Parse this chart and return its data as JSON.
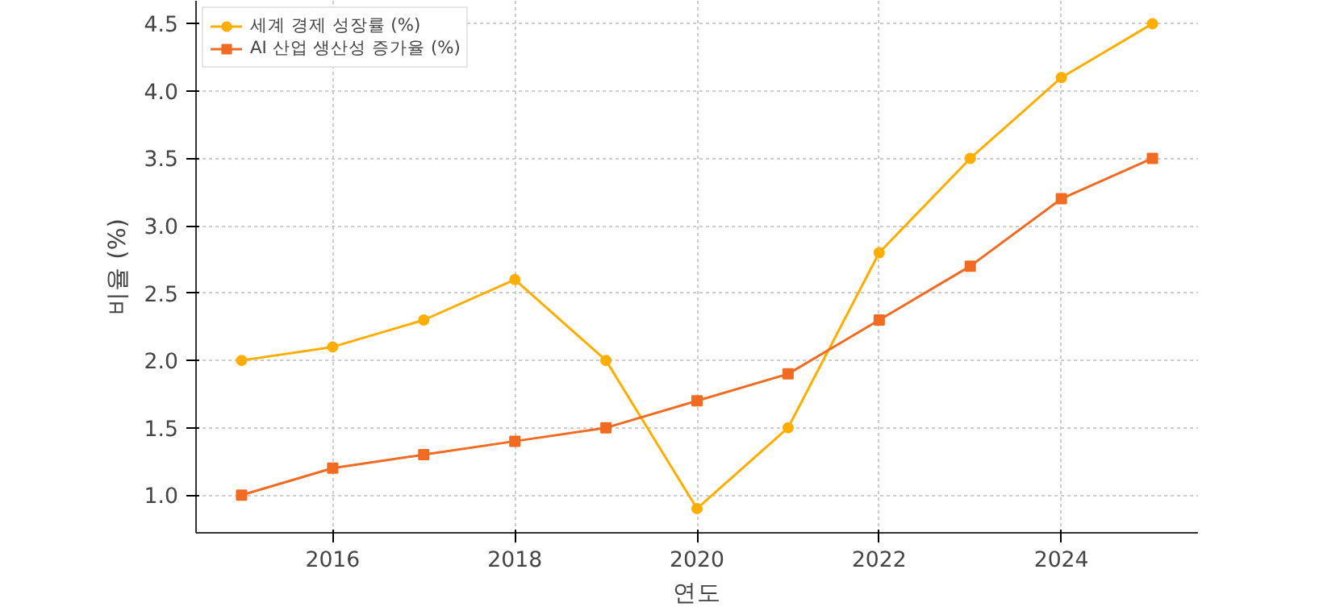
{
  "chart_data": {
    "type": "line",
    "xlabel": "연도",
    "ylabel": "비율 (%)",
    "x": [
      2015,
      2016,
      2017,
      2018,
      2019,
      2020,
      2021,
      2022,
      2023,
      2024,
      2025
    ],
    "series": [
      {
        "name": "세계 경제 성장률 (%)",
        "color": "#ffae00",
        "values": [
          2.0,
          2.1,
          2.3,
          2.6,
          2.0,
          0.9,
          1.5,
          2.8,
          3.5,
          4.1,
          4.5
        ],
        "marker": "circle"
      },
      {
        "name": "AI 산업 생산성 증가율 (%)",
        "color": "#f26b22",
        "values": [
          1.0,
          1.2,
          1.3,
          1.4,
          1.5,
          1.7,
          1.9,
          2.3,
          2.7,
          3.2,
          3.5
        ],
        "marker": "square"
      }
    ],
    "xlim": [
      2014.5,
      2025.5
    ],
    "ylim": [
      0.72,
      4.67
    ],
    "xticks": [
      2016,
      2018,
      2020,
      2022,
      2024
    ],
    "yticks": [
      {
        "value": 1.0,
        "label": "1.0"
      },
      {
        "value": 1.5,
        "label": "1.5"
      },
      {
        "value": 2.0,
        "label": "2.0"
      },
      {
        "value": 2.5,
        "label": "2.5"
      },
      {
        "value": 3.0,
        "label": "3.0"
      },
      {
        "value": 3.5,
        "label": "3.5"
      },
      {
        "value": 4.0,
        "label": "4.0"
      },
      {
        "value": 4.5,
        "label": "4.5"
      }
    ],
    "grid": true,
    "legend": "top left",
    "line_style": "solid"
  }
}
